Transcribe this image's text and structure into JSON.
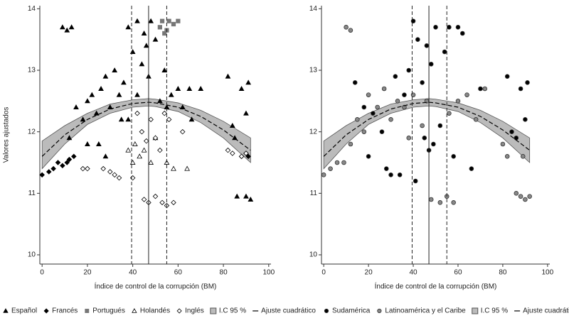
{
  "chart_data": [
    {
      "type": "scatter",
      "x_label": "Índice de control de la corrupción (BM)",
      "y_label": "Valores ajustados",
      "xlim": [
        -1,
        101
      ],
      "ylim": [
        9.85,
        14.05
      ],
      "xticks": [
        0,
        20,
        40,
        60,
        80,
        100
      ],
      "yticks": [
        10,
        11,
        12,
        13,
        14
      ],
      "vlines": [
        39.5,
        47,
        55
      ],
      "vline_styles": [
        "dashed",
        "solid",
        "dashed"
      ],
      "series": [
        {
          "name": "Español",
          "marker": "triangle",
          "color": "#000000",
          "filled": true,
          "x": [
            9,
            11,
            13,
            18,
            20,
            22,
            24,
            26,
            28,
            30,
            32,
            34,
            36,
            38,
            40,
            42,
            44,
            45,
            46,
            47,
            48,
            50,
            52,
            54,
            57,
            60,
            62,
            66,
            70,
            82,
            84,
            85,
            88,
            90,
            91,
            86,
            90,
            92,
            15,
            25,
            28,
            12,
            35,
            20,
            38,
            42,
            55,
            65
          ],
          "values": [
            13.7,
            13.65,
            13.7,
            12.2,
            12.5,
            12.6,
            12.3,
            12.7,
            12.9,
            12.4,
            13.0,
            12.6,
            12.8,
            13.7,
            13.3,
            13.8,
            13.1,
            13.6,
            13.4,
            12.9,
            13.8,
            13.5,
            12.5,
            13.0,
            12.6,
            12.7,
            12.4,
            12.2,
            12.7,
            12.9,
            12.1,
            11.9,
            12.7,
            12.3,
            12.8,
            10.95,
            10.95,
            10.9,
            12.4,
            11.8,
            11.6,
            11.9,
            12.2,
            11.8,
            12.2,
            12.6,
            12.4,
            12.7
          ]
        },
        {
          "name": "Francés",
          "marker": "diamond",
          "color": "#000000",
          "filled": true,
          "x": [
            0,
            3,
            5,
            7,
            9,
            11,
            12,
            14,
            88,
            90,
            91
          ],
          "values": [
            11.3,
            11.35,
            11.4,
            11.5,
            11.45,
            11.5,
            11.55,
            11.6,
            11.6,
            11.65,
            11.6
          ]
        },
        {
          "name": "Portugués",
          "marker": "square",
          "color": "#777777",
          "filled": true,
          "x": [
            52,
            53,
            55,
            56,
            58,
            60,
            54
          ],
          "values": [
            13.7,
            13.8,
            13.65,
            13.8,
            13.75,
            13.8,
            13.6
          ]
        },
        {
          "name": "Holandés",
          "marker": "triangle",
          "color": "#000000",
          "filled": false,
          "x": [
            38,
            40,
            41,
            43,
            45,
            48,
            50,
            55,
            58,
            64
          ],
          "values": [
            11.7,
            11.5,
            11.8,
            11.6,
            11.7,
            11.5,
            11.9,
            11.5,
            11.4,
            11.4
          ]
        },
        {
          "name": "Inglés",
          "marker": "diamond",
          "color": "#000000",
          "filled": false,
          "x": [
            18,
            20,
            27,
            30,
            32,
            34,
            40,
            42,
            44,
            46,
            48,
            50,
            52,
            54,
            56,
            45,
            47,
            50,
            53,
            55,
            58,
            82,
            84,
            88,
            90,
            62
          ],
          "values": [
            11.4,
            11.4,
            11.4,
            11.35,
            11.3,
            11.25,
            11.25,
            12.3,
            12.0,
            11.85,
            12.2,
            11.9,
            11.7,
            12.3,
            12.2,
            10.9,
            10.85,
            10.95,
            10.85,
            10.8,
            10.85,
            11.7,
            11.65,
            11.6,
            11.65,
            12.0
          ]
        },
        {
          "name": "I.C 95 %",
          "marker": "band",
          "color": "#bbbbbb",
          "x": [
            0,
            10,
            20,
            30,
            40,
            47,
            50,
            60,
            70,
            80,
            92
          ],
          "upper": [
            11.85,
            12.1,
            12.3,
            12.45,
            12.52,
            12.54,
            12.53,
            12.47,
            12.35,
            12.17,
            11.9
          ],
          "lower": [
            11.4,
            11.8,
            12.12,
            12.3,
            12.4,
            12.42,
            12.41,
            12.33,
            12.15,
            11.9,
            11.5
          ]
        },
        {
          "name": "Ajuste cuadrático",
          "marker": "line",
          "color": "#000000",
          "x": [
            0,
            10,
            20,
            30,
            40,
            47,
            50,
            60,
            70,
            80,
            92
          ],
          "values": [
            11.6,
            11.95,
            12.2,
            12.37,
            12.46,
            12.48,
            12.47,
            12.4,
            12.25,
            12.03,
            11.7
          ]
        }
      ]
    },
    {
      "type": "scatter",
      "x_label": "Índice de control de la corrupción (BM)",
      "xlim": [
        -1,
        101
      ],
      "ylim": [
        9.85,
        14.05
      ],
      "xticks": [
        0,
        20,
        40,
        60,
        80,
        100
      ],
      "yticks": [
        10,
        11,
        12,
        13,
        14
      ],
      "vlines": [
        39.5,
        47,
        55
      ],
      "vline_styles": [
        "dashed",
        "solid",
        "dashed"
      ],
      "series": [
        {
          "name": "Sudamérica",
          "marker": "circle",
          "color": "#000000",
          "filled": true,
          "x": [
            14,
            18,
            22,
            26,
            28,
            30,
            32,
            34,
            36,
            38,
            40,
            41,
            42,
            44,
            45,
            46,
            47,
            48,
            49,
            50,
            52,
            54,
            56,
            58,
            60,
            62,
            66,
            70,
            82,
            84,
            86,
            88,
            90,
            91,
            20
          ],
          "values": [
            12.8,
            12.4,
            12.3,
            12.0,
            11.4,
            11.3,
            12.9,
            11.3,
            12.6,
            13.0,
            13.8,
            11.2,
            13.5,
            12.8,
            11.9,
            13.4,
            11.7,
            13.1,
            11.8,
            13.7,
            12.1,
            13.3,
            13.7,
            11.6,
            13.7,
            13.6,
            11.4,
            12.7,
            12.9,
            12.0,
            11.9,
            12.7,
            12.2,
            12.8,
            11.6
          ]
        },
        {
          "name": "Latinoamérica y el Caribe",
          "marker": "circle",
          "color": "#888888",
          "filled": true,
          "x": [
            0,
            3,
            6,
            9,
            12,
            15,
            10,
            12,
            18,
            20,
            24,
            27,
            30,
            33,
            36,
            40,
            44,
            46,
            48,
            52,
            55,
            58,
            56,
            60,
            64,
            68,
            72,
            80,
            82,
            86,
            88,
            90,
            92,
            89,
            38
          ],
          "values": [
            11.3,
            11.4,
            11.5,
            11.5,
            11.8,
            12.2,
            13.7,
            13.65,
            12.0,
            12.6,
            12.4,
            12.7,
            12.2,
            12.5,
            12.4,
            12.6,
            12.1,
            12.5,
            10.9,
            10.85,
            10.95,
            10.85,
            12.3,
            12.5,
            12.6,
            12.2,
            12.7,
            11.8,
            11.6,
            11.0,
            10.95,
            10.9,
            10.95,
            11.6,
            11.9
          ]
        },
        {
          "name": "I.C 95 %",
          "marker": "band",
          "color": "#bbbbbb",
          "x": [
            0,
            10,
            20,
            30,
            40,
            47,
            50,
            60,
            70,
            80,
            92
          ],
          "upper": [
            11.85,
            12.1,
            12.3,
            12.45,
            12.52,
            12.54,
            12.53,
            12.47,
            12.35,
            12.17,
            11.9
          ],
          "lower": [
            11.4,
            11.8,
            12.12,
            12.3,
            12.4,
            12.42,
            12.41,
            12.33,
            12.15,
            11.9,
            11.5
          ]
        },
        {
          "name": "Ajuste cuadrático",
          "marker": "line",
          "color": "#000000",
          "x": [
            0,
            10,
            20,
            30,
            40,
            47,
            50,
            60,
            70,
            80,
            92
          ],
          "values": [
            11.6,
            11.95,
            12.2,
            12.37,
            12.46,
            12.48,
            12.47,
            12.4,
            12.25,
            12.03,
            11.7
          ]
        }
      ]
    }
  ]
}
